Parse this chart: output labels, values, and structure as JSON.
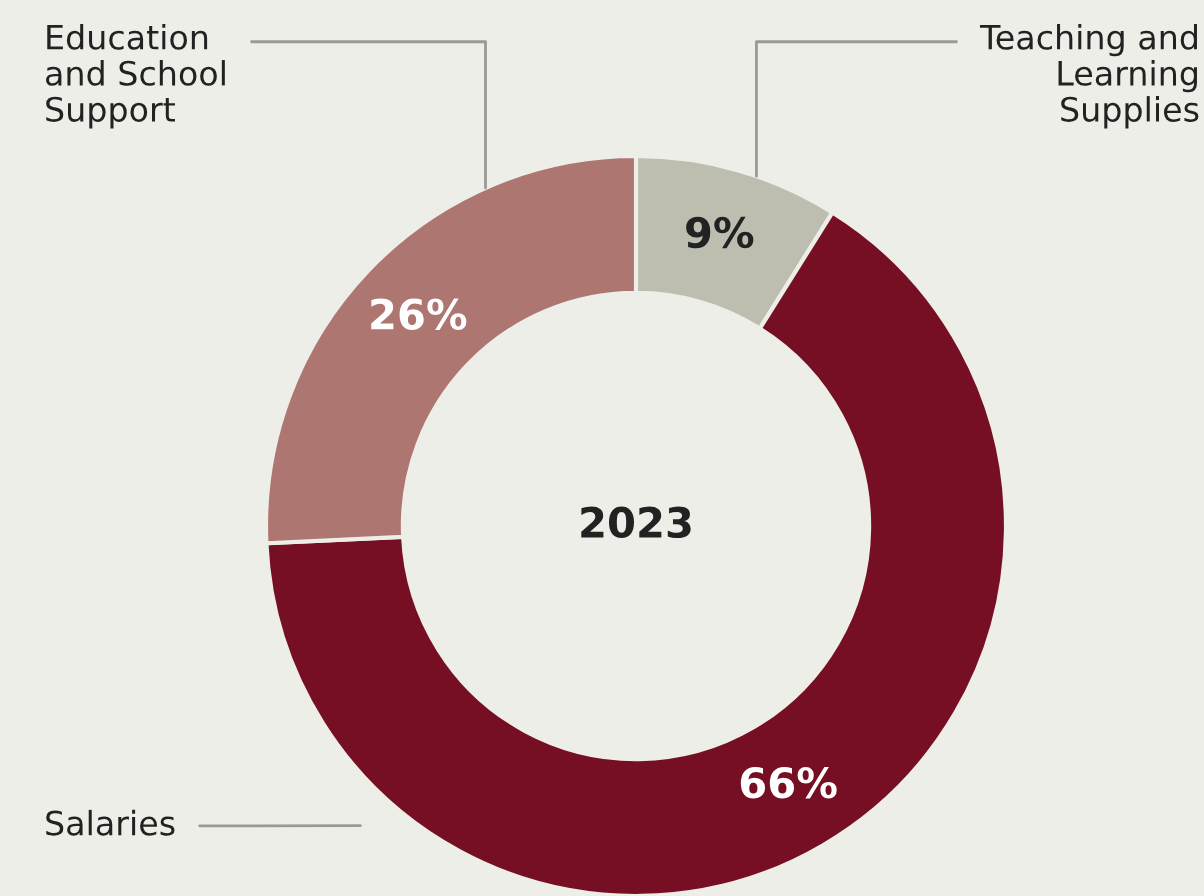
{
  "chart_data": {
    "type": "donut",
    "title": "2023",
    "categories": [
      "Teaching and\nLearning\nSupplies",
      "Salaries",
      "Education\nand School\nSupport"
    ],
    "values": [
      9,
      66,
      26
    ],
    "colors": [
      "#bdbdb0",
      "#760f23",
      "#ad7670"
    ],
    "value_labels": [
      "9%",
      "66%",
      "26%"
    ],
    "legend": false
  }
}
